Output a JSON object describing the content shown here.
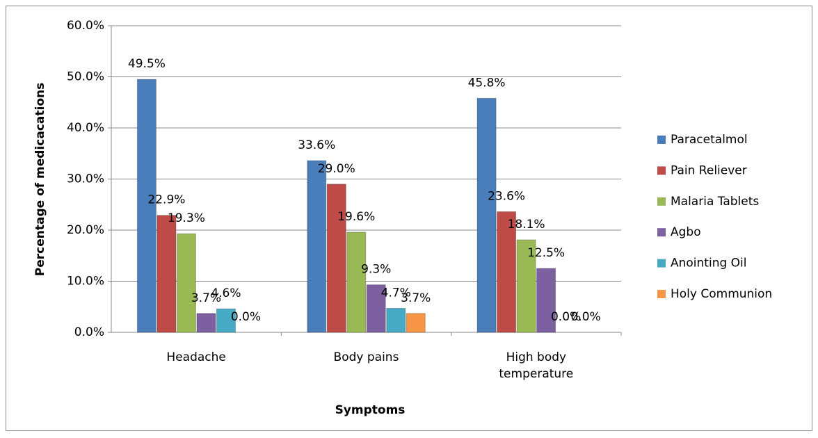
{
  "chart_data": {
    "type": "bar",
    "x_label": "Symptoms",
    "y_label": "Percentage of medicacations",
    "categories": [
      "Headache",
      "Body pains",
      "High body temperature"
    ],
    "series": [
      {
        "name": "Paracetalmol",
        "color": "#4a7ebb",
        "values": [
          49.5,
          33.6,
          45.8
        ],
        "value_labels": [
          "49.5%",
          "33.6%",
          "45.8%"
        ]
      },
      {
        "name": "Pain Reliever",
        "color": "#be4b48",
        "values": [
          22.9,
          29.0,
          23.6
        ],
        "value_labels": [
          "22.9%",
          "29.0%",
          "23.6%"
        ]
      },
      {
        "name": "Malaria Tablets",
        "color": "#98b954",
        "values": [
          19.3,
          19.6,
          18.1
        ],
        "value_labels": [
          "19.3%",
          "19.6%",
          "18.1%"
        ]
      },
      {
        "name": "Agbo",
        "color": "#7d60a0",
        "values": [
          3.7,
          9.3,
          12.5
        ],
        "value_labels": [
          "3.7%",
          "9.3%",
          "12.5%"
        ]
      },
      {
        "name": "Anointing Oil",
        "color": "#46aac5",
        "values": [
          4.6,
          4.7,
          0.0
        ],
        "value_labels": [
          "4.6%",
          "4.7%",
          "0.0%"
        ]
      },
      {
        "name": "Holy Communion",
        "color": "#f79646",
        "values": [
          0.0,
          3.7,
          0.0
        ],
        "value_labels": [
          "0.0%",
          "3.7%",
          "0.0%"
        ]
      }
    ],
    "ylim": [
      0,
      60
    ],
    "yticks": [
      {
        "value": 0,
        "label": "0.0%"
      },
      {
        "value": 10,
        "label": "10.0%"
      },
      {
        "value": 20,
        "label": "20.0%"
      },
      {
        "value": 30,
        "label": "30.0%"
      },
      {
        "value": 40,
        "label": "40.0%"
      },
      {
        "value": 50,
        "label": "50.0%"
      },
      {
        "value": 60,
        "label": "60.0%"
      }
    ],
    "grid": true,
    "legend": "right"
  }
}
